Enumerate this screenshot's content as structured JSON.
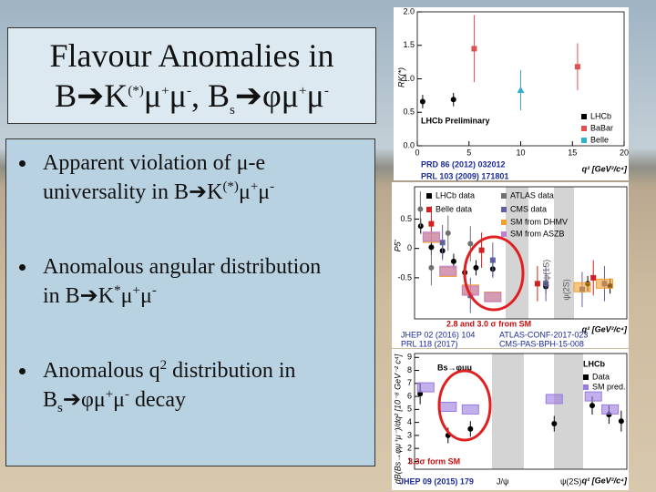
{
  "slide": {
    "title": {
      "line1": "Flavour Anomalies in",
      "line2": [
        "B➔K",
        "(*)",
        "μ",
        "+",
        "μ",
        "-",
        ", B",
        "s",
        "➔φμ",
        "+",
        "μ",
        "-"
      ]
    },
    "bullets": [
      [
        "Apparent violation of μ-e",
        "universality in B➔K",
        "(*)",
        "μ",
        "+",
        "μ",
        "-"
      ],
      [
        "Anomalous angular distribution",
        "in B➔K",
        "*",
        "μ",
        "+",
        "μ",
        "-"
      ],
      [
        "Anomalous q",
        "2",
        " distribution in",
        "B",
        "s",
        "➔φμ",
        "+",
        "μ",
        "-",
        " decay"
      ]
    ]
  },
  "plots": [
    {
      "y_label": "RK(*)",
      "x_label": "q² [GeV²/c⁴]",
      "xlim": [
        0,
        20
      ],
      "ylim": [
        0,
        2
      ],
      "xticks": [
        0,
        5,
        10,
        15,
        20
      ],
      "yticks": [
        {
          "value": 0,
          "label": "0.0"
        },
        {
          "value": 0.5,
          "label": "0.5"
        },
        {
          "value": 1,
          "label": "1.0"
        },
        {
          "value": 1.5,
          "label": "1.5"
        },
        {
          "value": 2,
          "label": "2.0"
        }
      ],
      "texts": [
        "LHCb Preliminary",
        "PRD 86 (2012) 032012",
        "PRL 103 (2009) 171801"
      ],
      "series": [
        {
          "name": "LHCb",
          "color": "#000000",
          "marker": "circle",
          "x": [
            0.52,
            3.5
          ],
          "values": [
            0.66,
            0.69
          ],
          "errors": [
            0.1,
            0.1
          ]
        },
        {
          "name": "BaBar",
          "color": "#e05050",
          "marker": "square",
          "x": [
            5.5,
            15.5
          ],
          "values": [
            1.45,
            1.18
          ],
          "errors": [
            0.5,
            0.35
          ]
        },
        {
          "name": "Belle",
          "color": "#30b0d0",
          "marker": "triangle",
          "x": [
            10
          ],
          "values": [
            0.83
          ],
          "errors": [
            0.3
          ]
        }
      ]
    },
    {
      "y_label": "P5'",
      "x_label": "q² [GeV²/c⁴]",
      "xlim": [
        0,
        19
      ],
      "ylim": [
        -1.2,
        1.05
      ],
      "yticks": [
        0.5,
        0,
        -0.5
      ],
      "texts": [
        "J/ψ(1S)",
        "ψ(2S)",
        "2.8 and 3.0 σ from SM",
        "JHEP 02 (2016) 104",
        "ATLAS-CONF-2017-023",
        "PRL 118 (2017)",
        "CMS-PAS-BPH-15-008"
      ],
      "series": [
        {
          "name": "LHCb data",
          "color": "#000000",
          "marker": "circle",
          "x": [
            0.55,
            1.5,
            2.5,
            3.5,
            4.5,
            5.5,
            7,
            11.75,
            15.5,
            17.5
          ],
          "values": [
            0.38,
            0.02,
            -0.04,
            -0.22,
            -0.41,
            -0.33,
            -0.35,
            -0.65,
            -0.6,
            -0.64
          ],
          "errors": [
            0.13,
            0.13,
            0.13,
            0.13,
            0.13,
            0.13,
            0.13,
            0.13,
            0.13,
            0.13
          ]
        },
        {
          "name": "Belle data",
          "color": "#d02020",
          "marker": "square",
          "x": [
            1.5,
            6,
            11,
            16
          ],
          "values": [
            0.42,
            -0.03,
            -0.6,
            -0.5
          ],
          "errors": [
            0.3,
            0.3,
            0.3,
            0.3
          ]
        },
        {
          "name": "ATLAS data",
          "color": "#707070",
          "marker": "circle",
          "x": [
            0.52,
            1.5,
            3,
            5
          ],
          "values": [
            0.67,
            -0.33,
            0.26,
            0.08
          ],
          "errors": [
            0.3,
            0.3,
            0.3,
            0.3
          ]
        },
        {
          "name": "CMS data",
          "color": "#6060a0",
          "marker": "square",
          "x": [
            2.5,
            5,
            7,
            11.75,
            15,
            17
          ],
          "values": [
            0.1,
            -0.8,
            -0.2,
            -0.6,
            -0.7,
            -0.6
          ],
          "errors": [
            0.3,
            0.3,
            0.3,
            0.3,
            0.3,
            0.3
          ]
        },
        {
          "name": "SM from DHMV",
          "color": "#f0a030",
          "marker": "box",
          "x": [
            1.5,
            3,
            5,
            7,
            15,
            17
          ],
          "values": [
            0.18,
            -0.4,
            -0.7,
            -0.82,
            -0.66,
            -0.6
          ]
        },
        {
          "name": "SM from ASZB",
          "color": "#c080d0",
          "marker": "box",
          "x": [
            1.5,
            3,
            5,
            7
          ],
          "values": [
            0.2,
            -0.38,
            -0.72,
            -0.83
          ]
        }
      ]
    },
    {
      "y_label": "dB(Bs→φμ⁺μ⁻)/dq² [10⁻⁸ GeV⁻² c⁴]",
      "x_label": "q² [GeV²/c⁴]",
      "xlim": [
        0,
        19
      ],
      "ylim": [
        0.4,
        9.3
      ],
      "yticks": [
        1,
        2,
        3,
        4,
        5,
        6,
        7,
        8,
        9
      ],
      "texts": [
        "Bs→φμμ",
        "LHCb",
        "3.3σ form SM",
        "J/ψ",
        "ψ(2S)",
        "JHEP 09 (2015) 179"
      ],
      "series": [
        {
          "name": "Data",
          "color": "#000000",
          "marker": "circle",
          "x": [
            0.5,
            3,
            5,
            12.5,
            15.9,
            17.4,
            18.5
          ],
          "values": [
            6.2,
            3.0,
            3.5,
            3.9,
            5.3,
            4.6,
            4.1
          ],
          "errors": [
            0.8,
            0.6,
            0.6,
            0.6,
            0.7,
            0.7,
            0.8
          ]
        },
        {
          "name": "SM pred.",
          "color": "#9a7ae0",
          "marker": "box",
          "x": [
            1,
            3,
            5,
            12.5,
            16,
            17.5
          ],
          "values": [
            6.7,
            5.2,
            5.0,
            5.8,
            6.0,
            5.0
          ]
        }
      ]
    }
  ]
}
